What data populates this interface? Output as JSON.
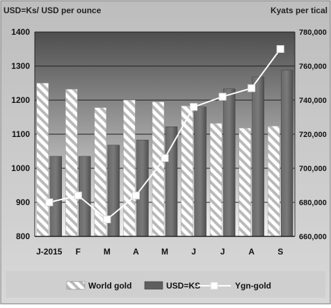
{
  "chart_data": {
    "type": "bar",
    "left_axis_title": "USD=Ks/  USD per ounce",
    "right_axis_title": "Kyats per tical",
    "categories": [
      "J-2015",
      "F",
      "M",
      "A",
      "M",
      "J",
      "J",
      "A",
      "S"
    ],
    "y_left": {
      "min": 800,
      "max": 1400,
      "ticks": [
        800,
        900,
        1000,
        1100,
        1200,
        1300,
        1400
      ]
    },
    "y_right": {
      "min": 660000,
      "max": 780000,
      "ticks": [
        "660,000",
        "680,000",
        "700,000",
        "720,000",
        "740,000",
        "760,000",
        "780,000"
      ],
      "tick_values": [
        660000,
        680000,
        700000,
        720000,
        740000,
        760000,
        780000
      ]
    },
    "series": [
      {
        "name": "World gold",
        "kind": "bar",
        "pattern": "hatched",
        "axis": "left",
        "values": [
          1250,
          1232,
          1178,
          1200,
          1195,
          1183,
          1132,
          1118,
          1124
        ]
      },
      {
        "name": "USD=KS",
        "kind": "bar",
        "color": "#5e5e5e",
        "axis": "left",
        "values": [
          1035,
          1035,
          1068,
          1083,
          1122,
          1180,
          1233,
          1268,
          1288
        ]
      },
      {
        "name": "Ygn-gold",
        "kind": "line",
        "color": "#ffffff",
        "axis": "right",
        "values": [
          680000,
          684000,
          670000,
          684000,
          706000,
          736000,
          742000,
          747000,
          770000
        ]
      }
    ],
    "grid": true,
    "legend_position": "bottom"
  }
}
